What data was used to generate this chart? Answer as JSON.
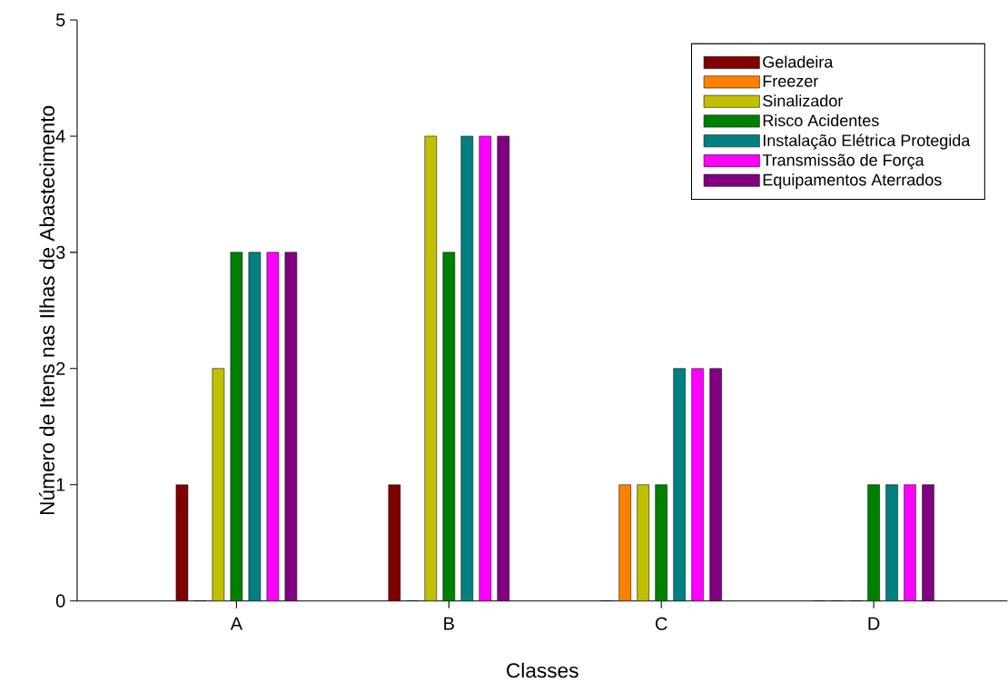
{
  "chart_data": {
    "type": "bar",
    "xlabel": "Classes",
    "ylabel": "Número de Itens nas Ilhas de Abastecimento",
    "categories": [
      "A",
      "B",
      "C",
      "D"
    ],
    "series": [
      {
        "name": "Geladeira",
        "color": "#800000",
        "values": [
          1,
          1,
          0,
          0
        ]
      },
      {
        "name": "Freezer",
        "color": "#ff8000",
        "values": [
          0,
          0,
          1,
          0
        ]
      },
      {
        "name": "Sinalizador",
        "color": "#c0c000",
        "values": [
          2,
          4,
          1,
          0
        ]
      },
      {
        "name": "Risco Acidentes",
        "color": "#008000",
        "values": [
          3,
          3,
          1,
          1
        ]
      },
      {
        "name": "Instalação Elétrica Protegida",
        "color": "#008080",
        "values": [
          3,
          4,
          2,
          1
        ]
      },
      {
        "name": "Transmissão de Força",
        "color": "#ff00ff",
        "values": [
          3,
          4,
          2,
          1
        ]
      },
      {
        "name": "Equipamentos Aterrados",
        "color": "#800080",
        "values": [
          3,
          4,
          2,
          1
        ]
      }
    ],
    "ylim": [
      0,
      5
    ],
    "yticks": [
      0,
      1,
      2,
      3,
      4,
      5
    ],
    "grid": false,
    "legend": "top right"
  }
}
